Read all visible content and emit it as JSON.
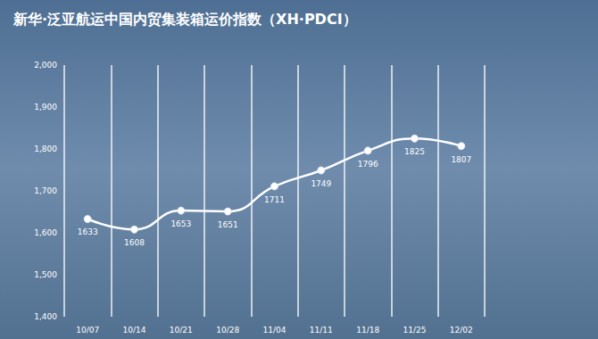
{
  "chart_data": {
    "type": "line",
    "title": "新华·泛亚航运中国内贸集装箱运价指数（XH·PDCI）",
    "categories": [
      "10/07",
      "10/14",
      "10/21",
      "10/28",
      "11/04",
      "11/11",
      "11/18",
      "11/25",
      "12/02"
    ],
    "values": [
      1633,
      1608,
      1653,
      1651,
      1711,
      1749,
      1796,
      1825,
      1807
    ],
    "color": "#ffffff",
    "marker": "circle",
    "line_style": "solid",
    "data_labels": true,
    "ylim": [
      1400,
      2000
    ],
    "yticks": [
      {
        "value": 1400,
        "label": "1,400"
      },
      {
        "value": 1500,
        "label": "1,500"
      },
      {
        "value": 1600,
        "label": "1,600"
      },
      {
        "value": 1700,
        "label": "1,700"
      },
      {
        "value": 1800,
        "label": "1,800"
      },
      {
        "value": 1900,
        "label": "1,900"
      },
      {
        "value": 2000,
        "label": "2,000"
      }
    ],
    "grid": true
  }
}
